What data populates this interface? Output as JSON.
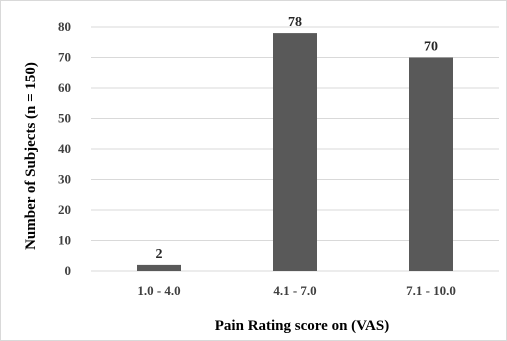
{
  "chart_data": {
    "type": "bar",
    "title": "",
    "categories": [
      "1.0 - 4.0",
      "4.1 - 7.0",
      "7.1 - 10.0"
    ],
    "values": [
      2,
      78,
      70
    ],
    "data_labels": [
      "2",
      "78",
      "70"
    ],
    "xlabel": "Pain Rating score on (VAS)",
    "ylabel": "Number of Subjects (n = 150)",
    "ylim": [
      0,
      80
    ],
    "yticks": [
      0,
      10,
      20,
      30,
      40,
      50,
      60,
      70,
      80
    ],
    "grid": true,
    "legend": "none",
    "bar_color": "#595959",
    "grid_color": "#d9d9d9"
  }
}
